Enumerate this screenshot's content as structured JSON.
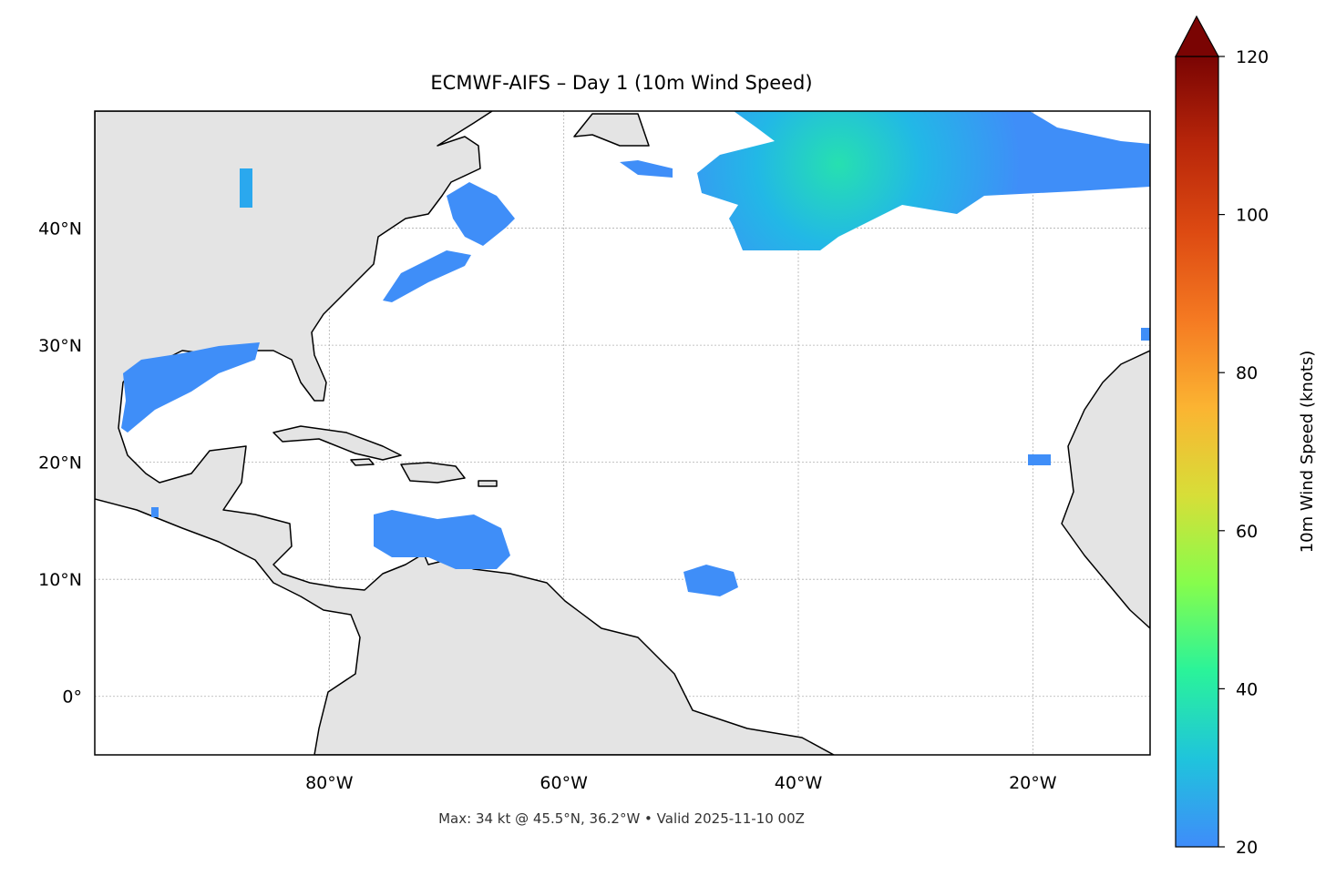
{
  "map": {
    "title": "ECMWF-AIFS – Day 1 (10m Wind Speed)",
    "footer": "Max: 34 kt @ 45.5°N, 36.2°W • Valid 2025-11-10 00Z",
    "xlim": [
      -100,
      -10
    ],
    "ylim": [
      -5,
      50
    ],
    "xticks": [
      {
        "value": -80,
        "label": "80°W"
      },
      {
        "value": -60,
        "label": "60°W"
      },
      {
        "value": -40,
        "label": "40°W"
      },
      {
        "value": -20,
        "label": "20°W"
      }
    ],
    "yticks": [
      {
        "value": 0,
        "label": "0°"
      },
      {
        "value": 10,
        "label": "10°N"
      },
      {
        "value": 20,
        "label": "20°N"
      },
      {
        "value": 30,
        "label": "30°N"
      },
      {
        "value": 40,
        "label": "40°N"
      }
    ],
    "grid": true
  },
  "colorbar": {
    "label": "10m Wind Speed (knots)",
    "lim": [
      20,
      120
    ],
    "ticks": [
      20,
      40,
      60,
      80,
      100,
      120
    ],
    "colors": [
      "#3f8cfa",
      "#1fc4dc",
      "#2af39a",
      "#86fd4c",
      "#d7de38",
      "#fbb432",
      "#f57a22",
      "#dd4a12",
      "#b8260a",
      "#7a0403"
    ],
    "extend_color": "#7a0403"
  }
}
